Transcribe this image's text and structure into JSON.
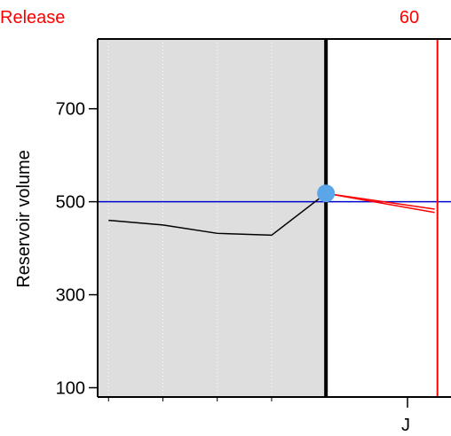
{
  "chart_data": {
    "type": "line",
    "ylabel": "Reservoir volume",
    "xlabel": "",
    "ylim": [
      80,
      850
    ],
    "xlim": [
      -1.2,
      5.3
    ],
    "y_ticks": [
      100,
      300,
      500,
      700
    ],
    "x_tick_labels": [
      {
        "x": 4.5,
        "label": "J"
      }
    ],
    "grid": "vertical-dotted",
    "history_series": {
      "name": "",
      "color": "#000000",
      "x": [
        -1,
        0,
        1,
        2,
        3
      ],
      "y": [
        460,
        450,
        432,
        428,
        518
      ]
    },
    "current_point": {
      "x": 3,
      "y": 518,
      "color": "#5aa6e8"
    },
    "forecast_series": [
      {
        "x": [
          3,
          5
        ],
        "y": [
          518,
          484
        ],
        "color": "#ff0000"
      },
      {
        "x": [
          3,
          5
        ],
        "y": [
          518,
          477
        ],
        "color": "#ff0000"
      }
    ],
    "target_line": {
      "y": 500,
      "color": "#0000cc"
    },
    "shaded_region": {
      "x_end": 3,
      "color": "#dedede"
    },
    "marker_lines": [
      {
        "x": 3,
        "color": "#000000",
        "width": 4
      },
      {
        "x": 5.05,
        "color": "#ff0000",
        "width": 2
      }
    ],
    "top_labels": {
      "left": "Release",
      "right": "60"
    }
  }
}
